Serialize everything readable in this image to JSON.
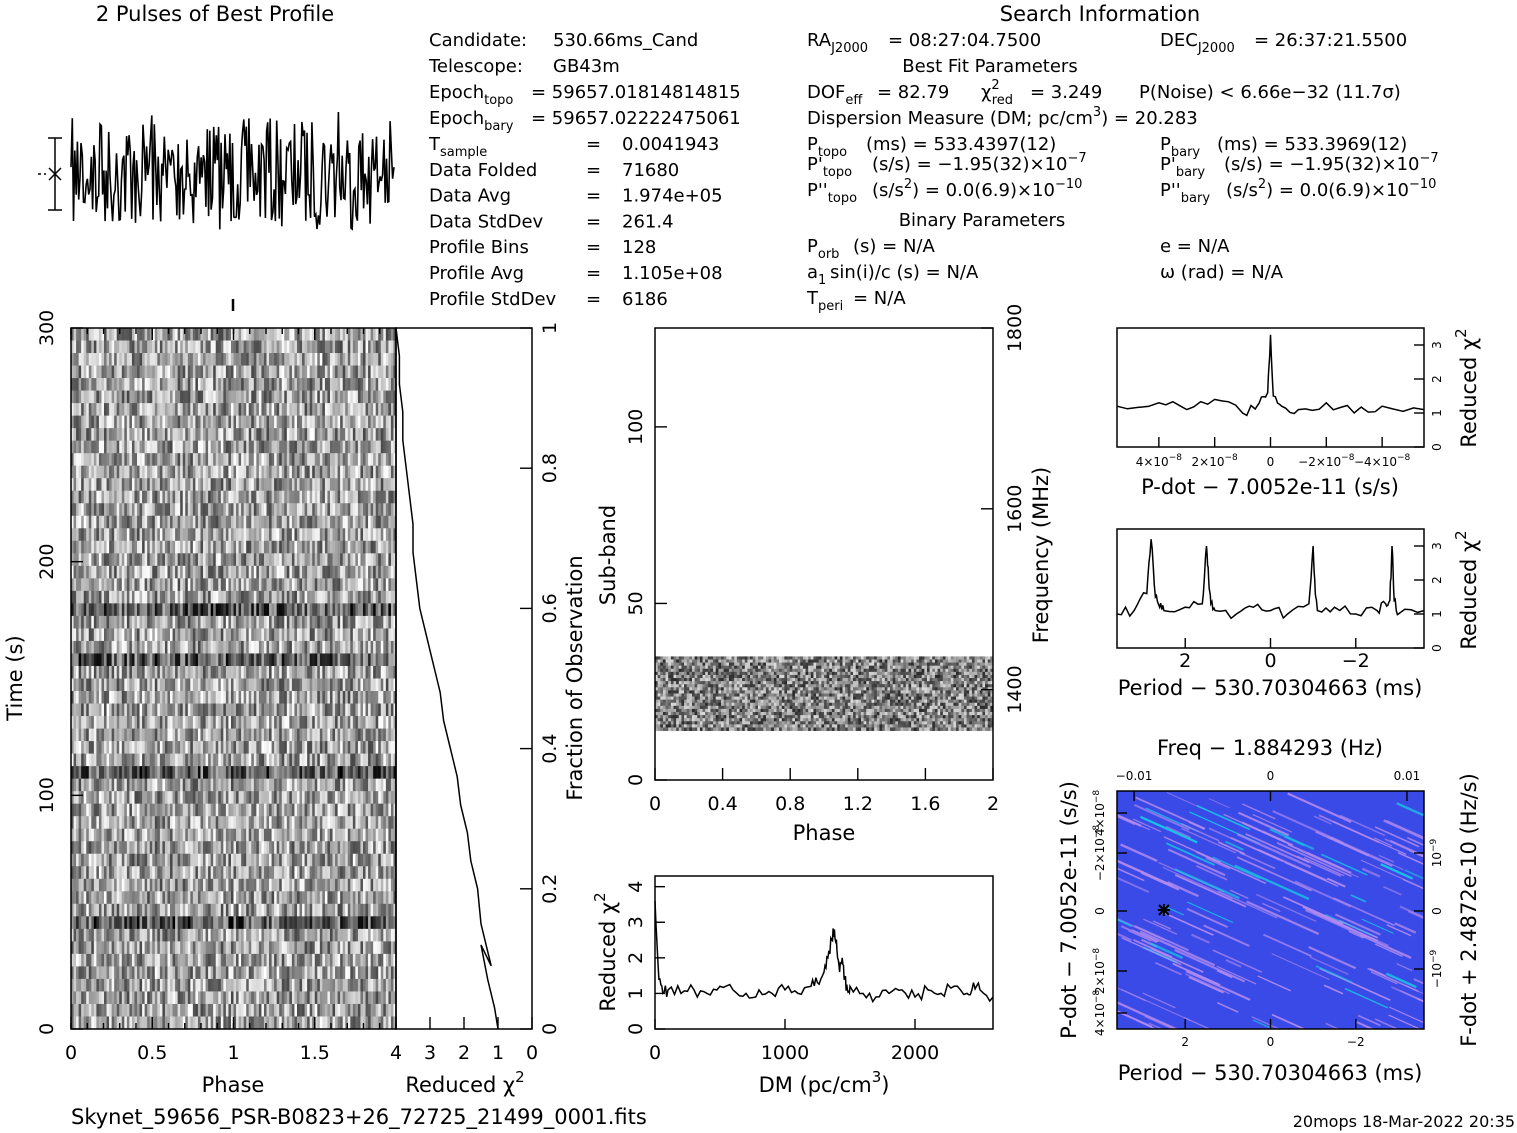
{
  "chart_data": [
    {
      "type": "line",
      "title": "2 Pulses of Best Profile",
      "x": [
        0,
        0.016,
        0.031,
        0.047,
        0.063,
        0.078,
        0.094,
        0.109,
        0.125,
        0.141,
        0.156,
        0.172,
        0.188,
        0.203,
        0.219,
        0.234,
        0.25,
        0.266,
        0.281,
        0.297,
        0.313,
        0.328,
        0.344,
        0.359,
        0.375,
        0.391,
        0.406,
        0.422,
        0.438,
        0.453,
        0.469,
        0.484,
        0.5,
        0.516,
        0.531,
        0.547,
        0.563,
        0.578,
        0.594,
        0.609,
        0.625,
        0.641,
        0.656,
        0.672,
        0.688,
        0.703,
        0.719,
        0.734,
        0.75,
        0.766,
        0.781,
        0.797,
        0.813,
        0.828,
        0.844,
        0.859,
        0.875,
        0.891,
        0.906,
        0.922,
        0.938,
        0.953,
        0.969,
        0.984,
        1.0
      ],
      "series": [
        {
          "values": [
            0.2,
            -0.6,
            0.9,
            -0.3,
            0.5,
            -1.1,
            1.4,
            0.1,
            -0.8,
            0.6,
            -0.2,
            1.1,
            -1.3,
            0.4,
            -0.5,
            0.8,
            1.7,
            -0.9,
            0.3,
            -0.4,
            0.7,
            -1.2,
            0.2,
            1.0,
            -0.6,
            0.5,
            -0.1,
            1.3,
            -0.7,
            0.4,
            -1.0,
            0.6,
            0.9,
            -0.3,
            1.2,
            -0.8,
            0.1,
            -0.5,
            0.8,
            1.5,
            -1.1,
            0.3,
            -0.2,
            0.7,
            -0.9,
            0.4,
            1.1,
            -0.6,
            0.2,
            -1.2,
            0.9,
            -0.4,
            0.6,
            1.8,
            -0.7,
            0.3,
            -0.5,
            0.8,
            -1.0,
            0.5,
            0.1,
            -0.3,
            1.0,
            -0.8,
            0.2
          ]
        }
      ]
    },
    {
      "type": "heatmap",
      "xlabel": "Phase",
      "ylabel": "Time (s)",
      "xlim": [
        0,
        2
      ],
      "ylim": [
        0,
        300
      ],
      "xticks": [
        "0",
        "0.5",
        "1",
        "1.5"
      ],
      "yticks": [
        "0",
        "100",
        "200",
        "300"
      ]
    },
    {
      "type": "line",
      "xlabel": "Reduced χ",
      "xlabel_sup": "2",
      "ylabel": "Fraction of Observation",
      "xlim": [
        4,
        0
      ],
      "ylim": [
        0,
        1
      ],
      "xticks": [
        "4",
        "3",
        "2",
        "1",
        "0"
      ],
      "yticks": [
        "0",
        "0.2",
        "0.4",
        "0.6",
        "0.8",
        "1"
      ],
      "series": [
        {
          "x": [
            1.0,
            1.1,
            1.3,
            1.5,
            1.2,
            1.5,
            1.6,
            1.8,
            1.9,
            2.1,
            2.2,
            2.4,
            2.6,
            2.7,
            2.9,
            3.1,
            3.3,
            3.4,
            3.5,
            3.5,
            3.6,
            3.7,
            3.8,
            3.8,
            3.9,
            3.9,
            4.0
          ],
          "y": [
            0.0,
            0.03,
            0.07,
            0.12,
            0.09,
            0.15,
            0.2,
            0.24,
            0.28,
            0.32,
            0.36,
            0.4,
            0.44,
            0.48,
            0.52,
            0.56,
            0.6,
            0.64,
            0.68,
            0.72,
            0.76,
            0.8,
            0.84,
            0.88,
            0.92,
            0.96,
            1.0
          ]
        }
      ]
    },
    {
      "type": "heatmap",
      "xlabel": "Phase",
      "ylabel": "Sub-band",
      "y2label": "Frequency (MHz)",
      "xlim": [
        0,
        2
      ],
      "ylim": [
        0,
        128
      ],
      "y2lim": [
        1300,
        1800
      ],
      "data_band": [
        14,
        35
      ],
      "xticks": [
        "0",
        "0.4",
        "0.8",
        "1.2",
        "1.6",
        "2"
      ],
      "yticks": [
        "0",
        "50",
        "100"
      ],
      "y2ticks": [
        "1400",
        "1600",
        "1800"
      ]
    },
    {
      "type": "line",
      "xlabel": "DM (pc/cm",
      "xlabel_sup": "3",
      "xlabel_end": ")",
      "ylabel": "Reduced χ",
      "ylabel_sup": "2",
      "xlim": [
        0,
        2600
      ],
      "ylim": [
        0,
        4.3
      ],
      "xticks": [
        "0",
        "1000",
        "2000"
      ],
      "yticks": [
        "0",
        "1",
        "2",
        "3",
        "4"
      ],
      "series": [
        {
          "x": [
            0,
            30,
            60,
            100,
            200,
            300,
            400,
            500,
            600,
            700,
            800,
            900,
            1000,
            1100,
            1200,
            1250,
            1300,
            1330,
            1360,
            1380,
            1400,
            1420,
            1440,
            1460,
            1480,
            1500,
            1600,
            1700,
            1800,
            1900,
            2000,
            2100,
            2200,
            2300,
            2400,
            2450,
            2500,
            2600
          ],
          "y": [
            3.6,
            1.4,
            1.0,
            1.1,
            1.0,
            1.1,
            1.0,
            1.2,
            1.1,
            1.0,
            1.1,
            1.0,
            1.1,
            1.0,
            1.2,
            1.3,
            1.6,
            2.0,
            2.5,
            2.8,
            2.2,
            1.6,
            2.0,
            1.4,
            1.1,
            1.2,
            1.0,
            0.9,
            1.0,
            1.1,
            0.9,
            1.1,
            1.0,
            1.2,
            1.0,
            1.3,
            1.1,
            0.9
          ]
        }
      ]
    },
    {
      "type": "line",
      "xlabel": "P-dot − 7.0052e-11 (s/s)",
      "ylabel": "Reduced χ",
      "ylabel_sup": "2",
      "xlim": [
        5.5e-08,
        -5.5e-08
      ],
      "ylim": [
        0,
        3.5
      ],
      "xticks": [
        "4×10",
        "2×10",
        "0",
        "−2×10",
        "−4×10"
      ],
      "xticks_exp": [
        "−8",
        "−8",
        "",
        "−8",
        "−8"
      ],
      "yticks": [
        "0",
        "1",
        "2",
        "3"
      ],
      "series": [
        {
          "x": [
            5.5e-08,
            4e-08,
            3e-08,
            2e-08,
            1e-08,
            4e-09,
            1e-09,
            0,
            -1e-09,
            -4e-09,
            -1e-08,
            -2e-08,
            -3e-08,
            -4e-08,
            -5.5e-08
          ],
          "y": [
            1.2,
            1.3,
            1.1,
            1.4,
            1.0,
            1.3,
            1.6,
            3.3,
            1.5,
            1.2,
            1.1,
            1.3,
            1.0,
            1.2,
            1.1
          ]
        }
      ]
    },
    {
      "type": "line",
      "xlabel": "Period − 530.70304663 (ms)",
      "ylabel": "Reduced χ",
      "ylabel_sup": "2",
      "xlim": [
        3.6,
        -3.6
      ],
      "ylim": [
        0,
        3.5
      ],
      "xticks": [
        "2",
        "0",
        "−2"
      ],
      "yticks": [
        "0",
        "1",
        "2",
        "3"
      ],
      "series": [
        {
          "x": [
            3.6,
            3.2,
            2.9,
            2.8,
            2.7,
            2.6,
            2.5,
            2.0,
            1.6,
            1.5,
            1.45,
            1.4,
            1.3,
            0.8,
            0.4,
            0.0,
            -0.4,
            -0.9,
            -1.0,
            -1.05,
            -1.1,
            -1.5,
            -2.0,
            -2.5,
            -2.7,
            -2.8,
            -2.85,
            -2.9,
            -3.0,
            -3.6
          ],
          "y": [
            1.0,
            1.1,
            1.6,
            3.2,
            1.5,
            1.2,
            1.1,
            1.2,
            1.3,
            3.0,
            2.0,
            1.3,
            1.1,
            1.0,
            1.2,
            1.1,
            1.0,
            1.3,
            3.0,
            1.6,
            1.1,
            1.2,
            1.0,
            1.1,
            1.3,
            1.4,
            3.0,
            1.4,
            1.0,
            1.1
          ]
        }
      ]
    },
    {
      "type": "heatmap",
      "title": "Freq − 1.884293 (Hz)",
      "xlabel": "Period − 530.70304663 (ms)",
      "ylabel": "P-dot − 7.0052e-11 (s/s)",
      "y2label": "F-dot + 2.4872e-10 (Hz/s)",
      "xlim": [
        3.6,
        -3.6
      ],
      "ylim": [
        4.5e-08,
        -4.5e-08
      ],
      "xticks": [
        "2",
        "0",
        "−2"
      ],
      "x2ticks": [
        "−0.01",
        "0",
        "0.01"
      ],
      "yticks": [
        "4×10",
        "−2×10",
        "0",
        "2×10",
        "4×10"
      ],
      "yticks_exp": [
        "−8",
        "−8",
        "",
        "−8",
        "−8"
      ],
      "y2ticks": [
        "10",
        "0",
        "−10"
      ],
      "y2ticks_exp": [
        "−9",
        "",
        "−9"
      ],
      "best_fit_marker": [
        2.5,
        0
      ]
    }
  ],
  "header": {
    "search_title": "Search Information",
    "candidate_label": "Candidate:",
    "candidate": "530.66ms_Cand",
    "telescope_label": "Telescope:",
    "telescope": "GB43m",
    "epoch_topo_label": "Epoch",
    "epoch_topo_sub": "topo",
    "epoch_topo": "= 59657.01814814815",
    "epoch_bary_label": "Epoch",
    "epoch_bary_sub": "bary",
    "epoch_bary": "= 59657.02222475061",
    "rows_left": [
      {
        "label": "T",
        "sub": "sample",
        "eq": "=",
        "value": "0.0041943"
      },
      {
        "label": "Data Folded",
        "sub": "",
        "eq": "=",
        "value": "71680"
      },
      {
        "label": "Data Avg",
        "sub": "",
        "eq": "=",
        "value": "1.974e+05"
      },
      {
        "label": "Data StdDev",
        "sub": "",
        "eq": "=",
        "value": "261.4"
      },
      {
        "label": "Profile Bins",
        "sub": "",
        "eq": "=",
        "value": "128"
      },
      {
        "label": "Profile Avg",
        "sub": "",
        "eq": "=",
        "value": "1.105e+08"
      },
      {
        "label": "Profile StdDev",
        "sub": "",
        "eq": "=",
        "value": "6186"
      }
    ],
    "ra_label": "RA",
    "ra_sub": "J2000",
    "ra_value": "= 08:27:04.7500",
    "dec_label": "DEC",
    "dec_sub": "J2000",
    "dec_value": "= 26:37:21.5500",
    "best_fit_title": "Best Fit Parameters",
    "dof_label": "DOF",
    "dof_sub": "eff",
    "dof_value": "= 82.79",
    "chi_label": "χ",
    "chi_sup": "2",
    "chi_sub": "red",
    "chi_value": "= 3.249",
    "pnoise": "P(Noise) < 6.66e−32   (11.7σ)",
    "dm_text": "Dispersion Measure (DM; pc/cm",
    "dm_sup": "3",
    "dm_value": ") = 20.283",
    "ptopo_label": "P",
    "ptopo_sub": "topo",
    "ptopo_value": "(ms) =  533.4397(12)",
    "pbary_label": "P",
    "pbary_sub": "bary",
    "pbary_value": "(ms) =  533.3969(12)",
    "pdtopo_label": "P'",
    "pdtopo_sub": "topo",
    "pdtopo_value": "(s/s) = −1.95(32)×10",
    "pdtopo_exp": "−7",
    "pdbary_label": "P'",
    "pdbary_sub": "bary",
    "pdbary_value": "(s/s) = −1.95(32)×10",
    "pdbary_exp": "−7",
    "pddtopo_label": "P''",
    "pddtopo_sub": "topo",
    "pddtopo_value": "(s/s",
    "pddtopo_value2": ") = 0.0(6.9)×10",
    "pddtopo_sup": "2",
    "pddtopo_exp": "−10",
    "pddbary_label": "P''",
    "pddbary_sub": "bary",
    "pddbary_value": "(s/s",
    "pddbary_value2": ") = 0.0(6.9)×10",
    "pddbary_sup": "2",
    "pddbary_exp": "−10",
    "binary_title": "Binary Parameters",
    "porb_label": "P",
    "porb_sub": "orb",
    "porb_value": "(s) = N/A",
    "a1_label": "a",
    "a1_sub": "1",
    "a1_value": "sin(i)/c (s) = N/A",
    "tperi_label": "T",
    "tperi_sub": "peri",
    "tperi_value": "= N/A",
    "e_value": "e = N/A",
    "omega_value": "ω (rad) = N/A"
  },
  "footer": {
    "filename": "Skynet_59656_PSR-B0823+26_72725_21499_0001.fits",
    "stamp": "20mops 18-Mar-2022 20:35"
  },
  "colors": {
    "ink": "#000000",
    "ppdot_bg": "#3a4ae6",
    "ppdot_streak": "#b48cf0",
    "ppdot_cyan": "#19c8e6"
  }
}
